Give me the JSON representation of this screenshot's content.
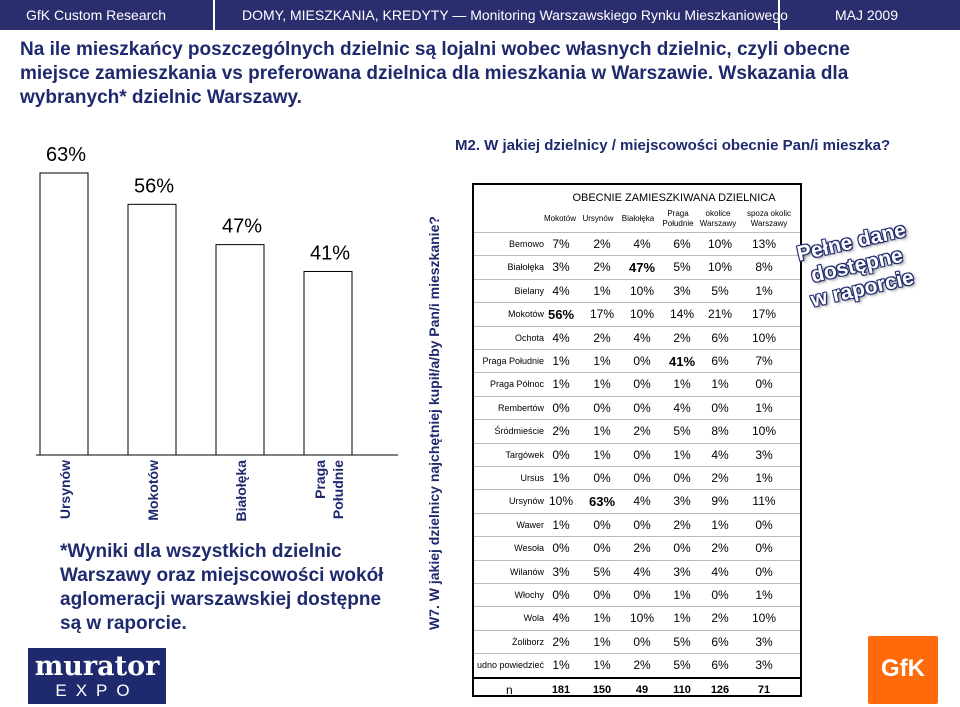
{
  "header": {
    "left": "GfK Custom Research",
    "center": "DOMY, MIESZKANIA, KREDYTY — Monitoring Warszawskiego Rynku Mieszkaniowego",
    "right": "MAJ 2009"
  },
  "headline": "Na ile mieszkańcy poszczególnych dzielnic są lojalni wobec własnych dzielnic, czyli obecne miejsce zamieszkania vs preferowana dzielnica dla mieszkania w Warszawie. Wskazania dla wybranych* dzielnic Warszawy.",
  "footnote": "*Wyniki dla wszystkich dzielnic Warszawy oraz miejscowości wokół aglomeracji warszawskiej dostępne są w raporcie.",
  "logo_murator": {
    "line1": "murator",
    "line2": "EXPO"
  },
  "logo_gfk": "GfK",
  "stamp": {
    "line1": "Pełne dane",
    "line2": "dostępne",
    "line3": "w raporcie"
  },
  "colors": {
    "brand": "#2b2e6e",
    "text_blue": "#1f2a6e",
    "gfk_orange": "#ff6b0a"
  },
  "chart_data": [
    {
      "type": "bar",
      "categories": [
        "Ursynów",
        "Mokotów",
        "Białołęka",
        "Praga Południe"
      ],
      "values": [
        63,
        56,
        47,
        41
      ],
      "value_labels": [
        "63%",
        "56%",
        "47%",
        "41%"
      ],
      "ylim": [
        0,
        70
      ],
      "ylabel": "W7. W jakiej dzielnicy najchętniej kupił/a/by Pan/i mieszkanie?",
      "xlabel": "",
      "title": ""
    },
    {
      "type": "table",
      "title": "M2. W jakiej dzielnicy / miejscowości obecnie Pan/i mieszka?",
      "group_header": "OBECNIE ZAMIESZKIWANA DZIELNICA",
      "columns": [
        "Mokotów",
        "Ursynów",
        "Białołęka",
        "Praga Południe",
        "okolice Warszawy",
        "spoza okolic Warszawy"
      ],
      "rows": [
        {
          "label": "Bemowo",
          "values": [
            "7%",
            "2%",
            "4%",
            "6%",
            "10%",
            "13%"
          ]
        },
        {
          "label": "Białołęka",
          "values": [
            "3%",
            "2%",
            "47%",
            "5%",
            "10%",
            "8%"
          ]
        },
        {
          "label": "Bielany",
          "values": [
            "4%",
            "1%",
            "10%",
            "3%",
            "5%",
            "1%"
          ]
        },
        {
          "label": "Mokotów",
          "values": [
            "56%",
            "17%",
            "10%",
            "14%",
            "21%",
            "17%"
          ]
        },
        {
          "label": "Ochota",
          "values": [
            "4%",
            "2%",
            "4%",
            "2%",
            "6%",
            "10%"
          ]
        },
        {
          "label": "Praga Południe",
          "values": [
            "1%",
            "1%",
            "0%",
            "41%",
            "6%",
            "7%"
          ]
        },
        {
          "label": "Praga Północ",
          "values": [
            "1%",
            "1%",
            "0%",
            "1%",
            "1%",
            "0%"
          ]
        },
        {
          "label": "Rembertów",
          "values": [
            "0%",
            "0%",
            "0%",
            "4%",
            "0%",
            "1%"
          ]
        },
        {
          "label": "Śródmieście",
          "values": [
            "2%",
            "1%",
            "2%",
            "5%",
            "8%",
            "10%"
          ]
        },
        {
          "label": "Targówek",
          "values": [
            "0%",
            "1%",
            "0%",
            "1%",
            "4%",
            "3%"
          ]
        },
        {
          "label": "Ursus",
          "values": [
            "1%",
            "0%",
            "0%",
            "0%",
            "2%",
            "1%"
          ]
        },
        {
          "label": "Ursynów",
          "values": [
            "10%",
            "63%",
            "4%",
            "3%",
            "9%",
            "11%"
          ]
        },
        {
          "label": "Wawer",
          "values": [
            "1%",
            "0%",
            "0%",
            "2%",
            "1%",
            "0%"
          ]
        },
        {
          "label": "Wesoła",
          "values": [
            "0%",
            "0%",
            "2%",
            "0%",
            "2%",
            "0%"
          ]
        },
        {
          "label": "Wilanów",
          "values": [
            "3%",
            "5%",
            "4%",
            "3%",
            "4%",
            "0%"
          ]
        },
        {
          "label": "Włochy",
          "values": [
            "0%",
            "0%",
            "0%",
            "1%",
            "0%",
            "1%"
          ]
        },
        {
          "label": "Wola",
          "values": [
            "4%",
            "1%",
            "10%",
            "1%",
            "2%",
            "10%"
          ]
        },
        {
          "label": "Żoliborz",
          "values": [
            "2%",
            "1%",
            "0%",
            "5%",
            "6%",
            "3%"
          ]
        },
        {
          "label": "udno powiedzieć",
          "values": [
            "1%",
            "1%",
            "2%",
            "5%",
            "6%",
            "3%"
          ]
        }
      ],
      "n_row": {
        "label": "n",
        "values": [
          "181",
          "150",
          "49",
          "110",
          "126",
          "71"
        ]
      },
      "highlight": [
        [
          3,
          0
        ],
        [
          11,
          1
        ],
        [
          1,
          2
        ],
        [
          5,
          3
        ]
      ]
    }
  ]
}
